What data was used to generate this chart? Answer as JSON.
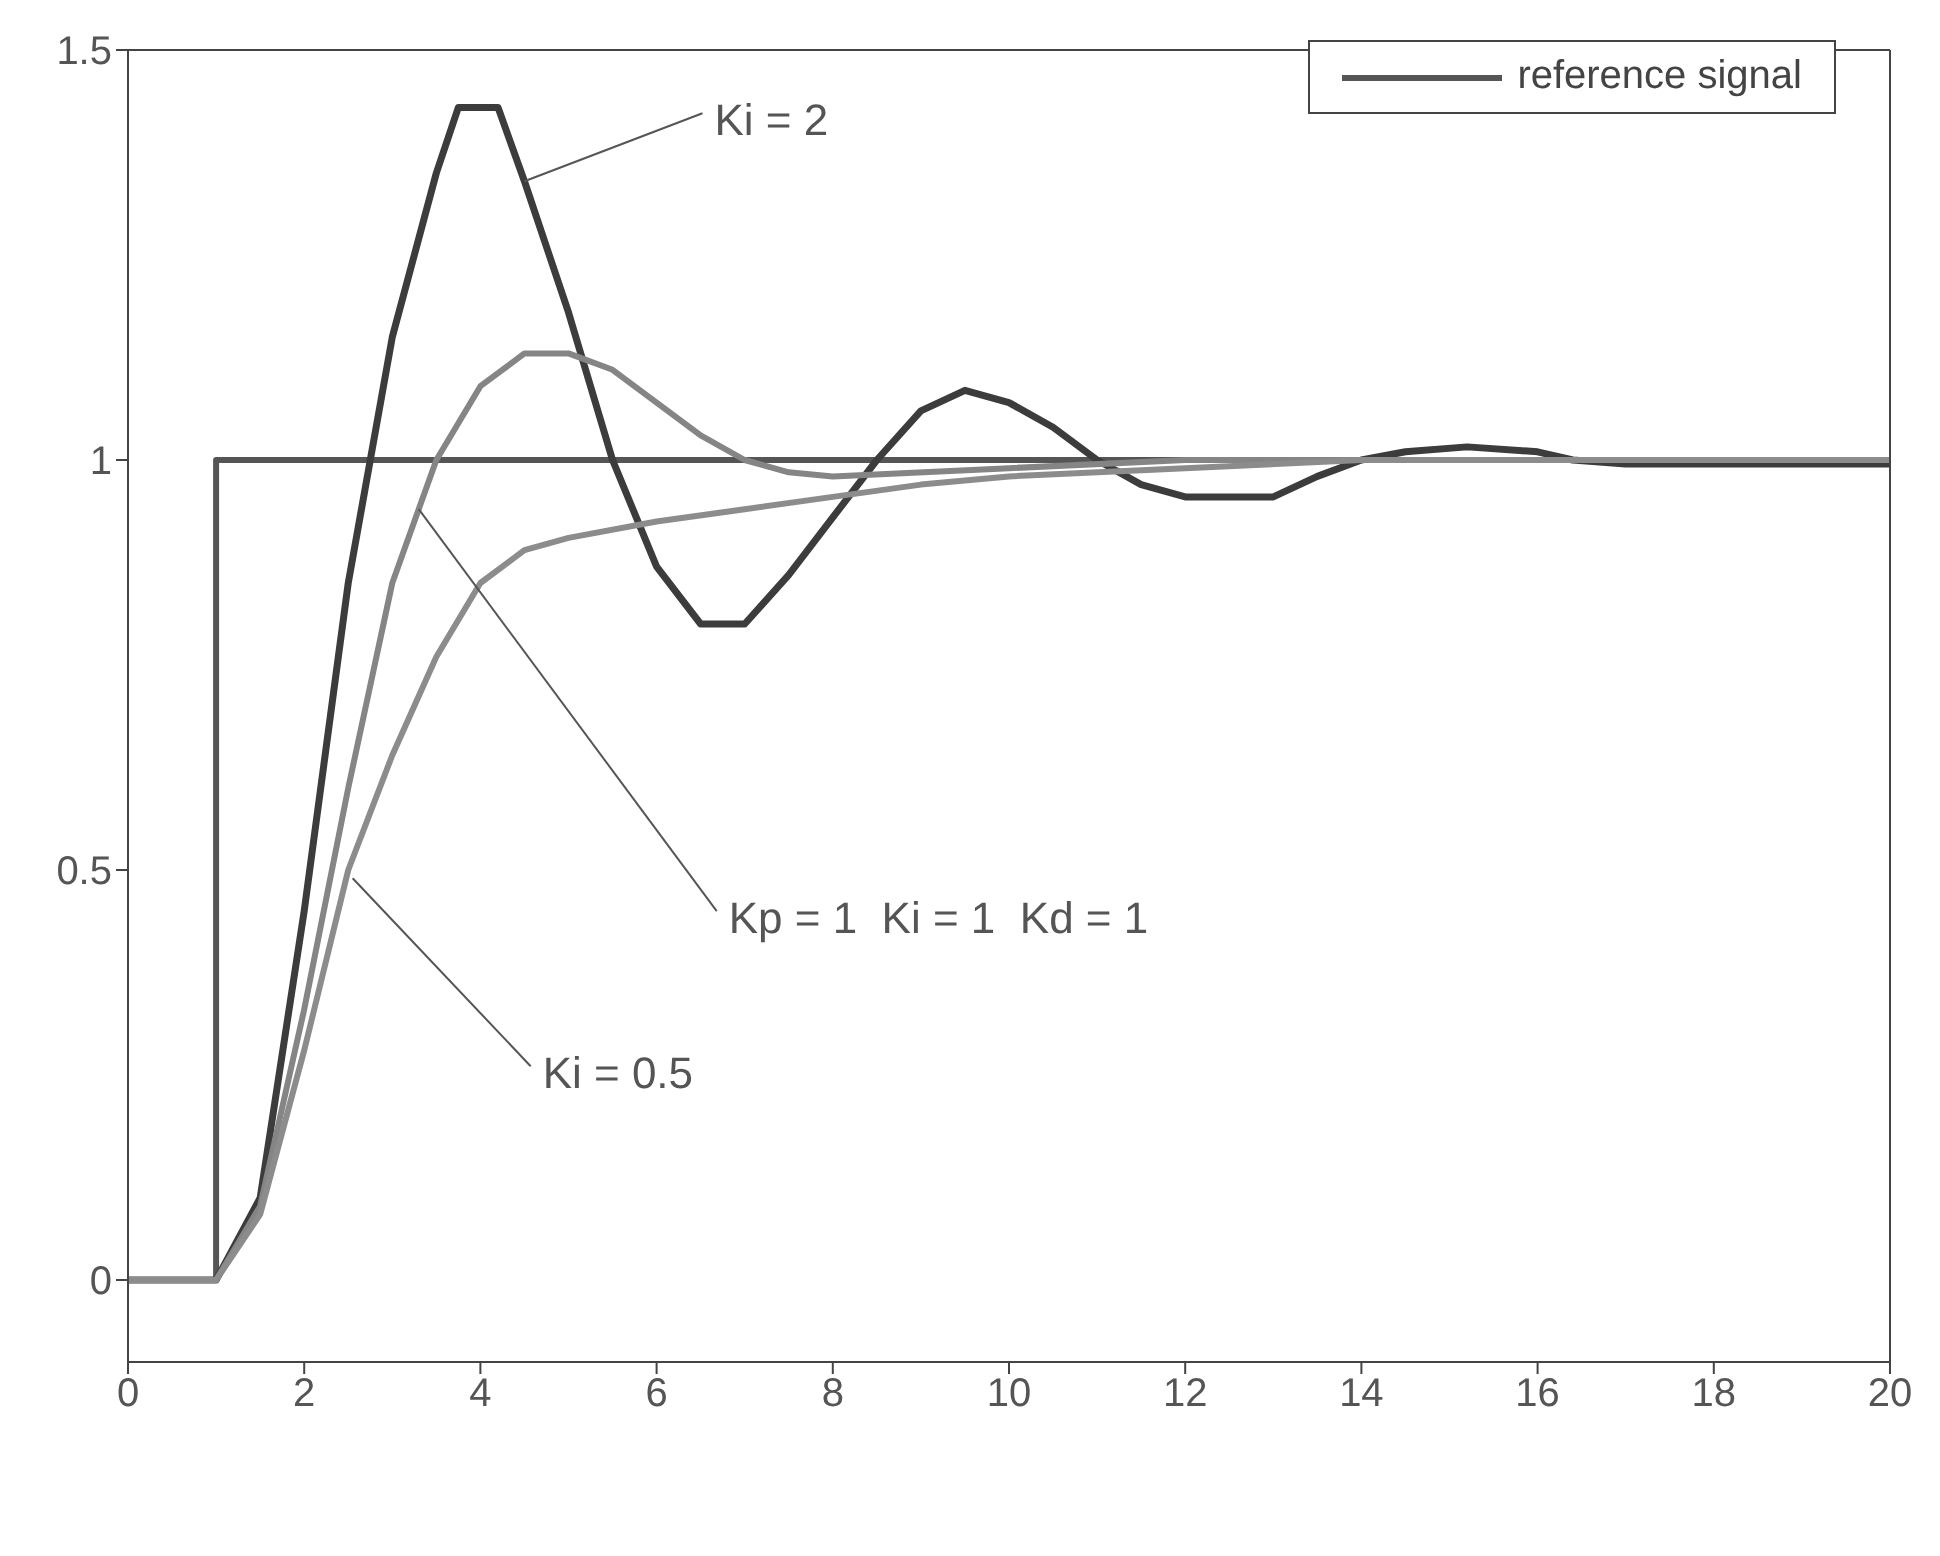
{
  "chart_data": {
    "type": "line",
    "xlim": [
      0,
      20
    ],
    "ylim": [
      -0.1,
      1.5
    ],
    "xticks": [
      0,
      2,
      4,
      6,
      8,
      10,
      12,
      14,
      16,
      18,
      20
    ],
    "yticks": [
      0,
      0.5,
      1,
      1.5
    ],
    "legend": "top right",
    "marker": "none",
    "line_style": "solid",
    "series": [
      {
        "name": "reference signal",
        "color": "#555555",
        "x": [
          0,
          1,
          1,
          20
        ],
        "values": [
          0,
          0,
          1,
          1
        ]
      },
      {
        "color": "#3c3c3c",
        "x": [
          0,
          1,
          1.5,
          2,
          2.5,
          3,
          3.5,
          3.75,
          4.2,
          4.5,
          5,
          5.5,
          6,
          6.5,
          7,
          7.5,
          8,
          8.5,
          9,
          9.5,
          10,
          10.5,
          11,
          11.5,
          12,
          13,
          13.5,
          14,
          14.5,
          15.2,
          16,
          16.4,
          17,
          20
        ],
        "values": [
          0,
          0,
          0.1,
          0.45,
          0.85,
          1.15,
          1.35,
          1.43,
          1.43,
          1.34,
          1.18,
          1.0,
          0.87,
          0.8,
          0.8,
          0.86,
          0.93,
          1.0,
          1.06,
          1.085,
          1.07,
          1.04,
          1.0,
          0.97,
          0.955,
          0.955,
          0.98,
          1.0,
          1.01,
          1.016,
          1.01,
          1.0,
          0.995,
          0.995
        ]
      },
      {
        "color": "#858585",
        "x": [
          0,
          1,
          1.5,
          2,
          2.5,
          3,
          3.5,
          4,
          4.5,
          5,
          5.5,
          6,
          6.5,
          7,
          7.5,
          8,
          10,
          12,
          20
        ],
        "values": [
          0,
          0,
          0.09,
          0.33,
          0.6,
          0.85,
          1.0,
          1.09,
          1.13,
          1.13,
          1.11,
          1.07,
          1.03,
          1.0,
          0.985,
          0.98,
          0.99,
          1.0,
          1.0
        ]
      },
      {
        "color": "#8c8c8c",
        "x": [
          0,
          1,
          1.5,
          2,
          2.5,
          3,
          3.5,
          4,
          4.5,
          5,
          6,
          7,
          8,
          9,
          10,
          12,
          14,
          20
        ],
        "values": [
          0,
          0,
          0.08,
          0.28,
          0.5,
          0.64,
          0.76,
          0.85,
          0.89,
          0.905,
          0.925,
          0.94,
          0.955,
          0.97,
          0.98,
          0.99,
          1.0,
          1.0
        ]
      }
    ],
    "annotations": [
      {
        "text": "Ki = 2",
        "x": 4.5,
        "y": 1.34
      },
      {
        "text": "Kp = 1  Ki = 1  Kd = 1",
        "x": 3.3,
        "y": 0.94
      },
      {
        "text": "Ki = 0.5",
        "x": 2.55,
        "y": 0.49
      }
    ]
  }
}
